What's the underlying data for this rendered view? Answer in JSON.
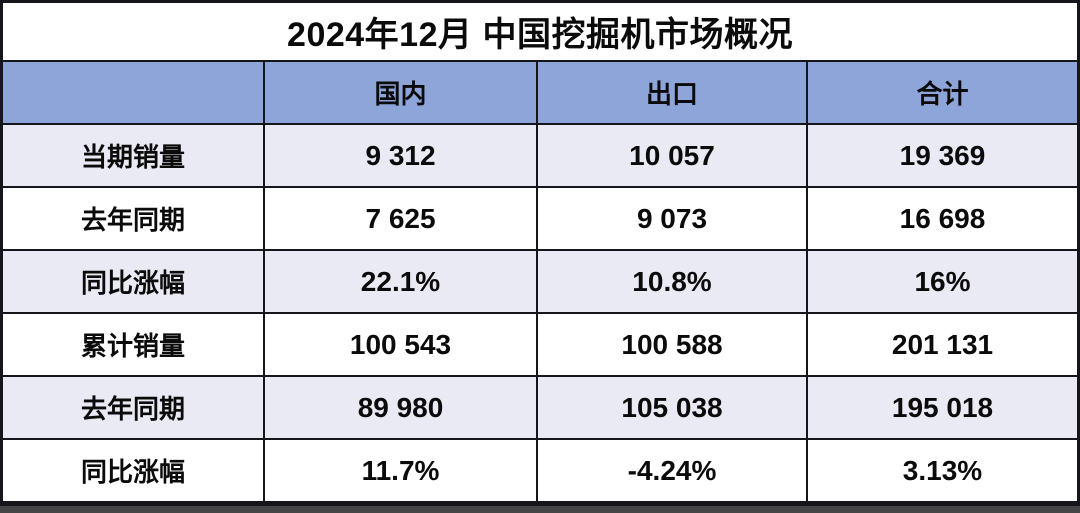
{
  "title": "2024年12月 中国挖掘机市场概况",
  "colors": {
    "header_bg": "#8EA5DA",
    "alt_row_bg": "#E9EAF3",
    "row_bg": "#FFFFFF",
    "border": "#15151C",
    "text": "#0B0B0B",
    "shadow": "#454545"
  },
  "chart_data": {
    "type": "table",
    "title": "2024年12月 中国挖掘机市场概况",
    "columns": [
      "",
      "国内",
      "出口",
      "合计"
    ],
    "rows": [
      {
        "label": "当期销量",
        "values": [
          "9 312",
          "10 057",
          "19 369"
        ]
      },
      {
        "label": "去年同期",
        "values": [
          "7 625",
          "9 073",
          "16 698"
        ]
      },
      {
        "label": "同比涨幅",
        "values": [
          "22.1%",
          "10.8%",
          "16%"
        ]
      },
      {
        "label": "累计销量",
        "values": [
          "100 543",
          "100 588",
          "201 131"
        ]
      },
      {
        "label": "去年同期",
        "values": [
          "89 980",
          "105 038",
          "195 018"
        ]
      },
      {
        "label": "同比涨幅",
        "values": [
          "11.7%",
          "-4.24%",
          "3.13%"
        ]
      }
    ],
    "layout": {
      "grid": true,
      "alternating_row_shading": true,
      "first_data_row_shaded": true
    }
  }
}
